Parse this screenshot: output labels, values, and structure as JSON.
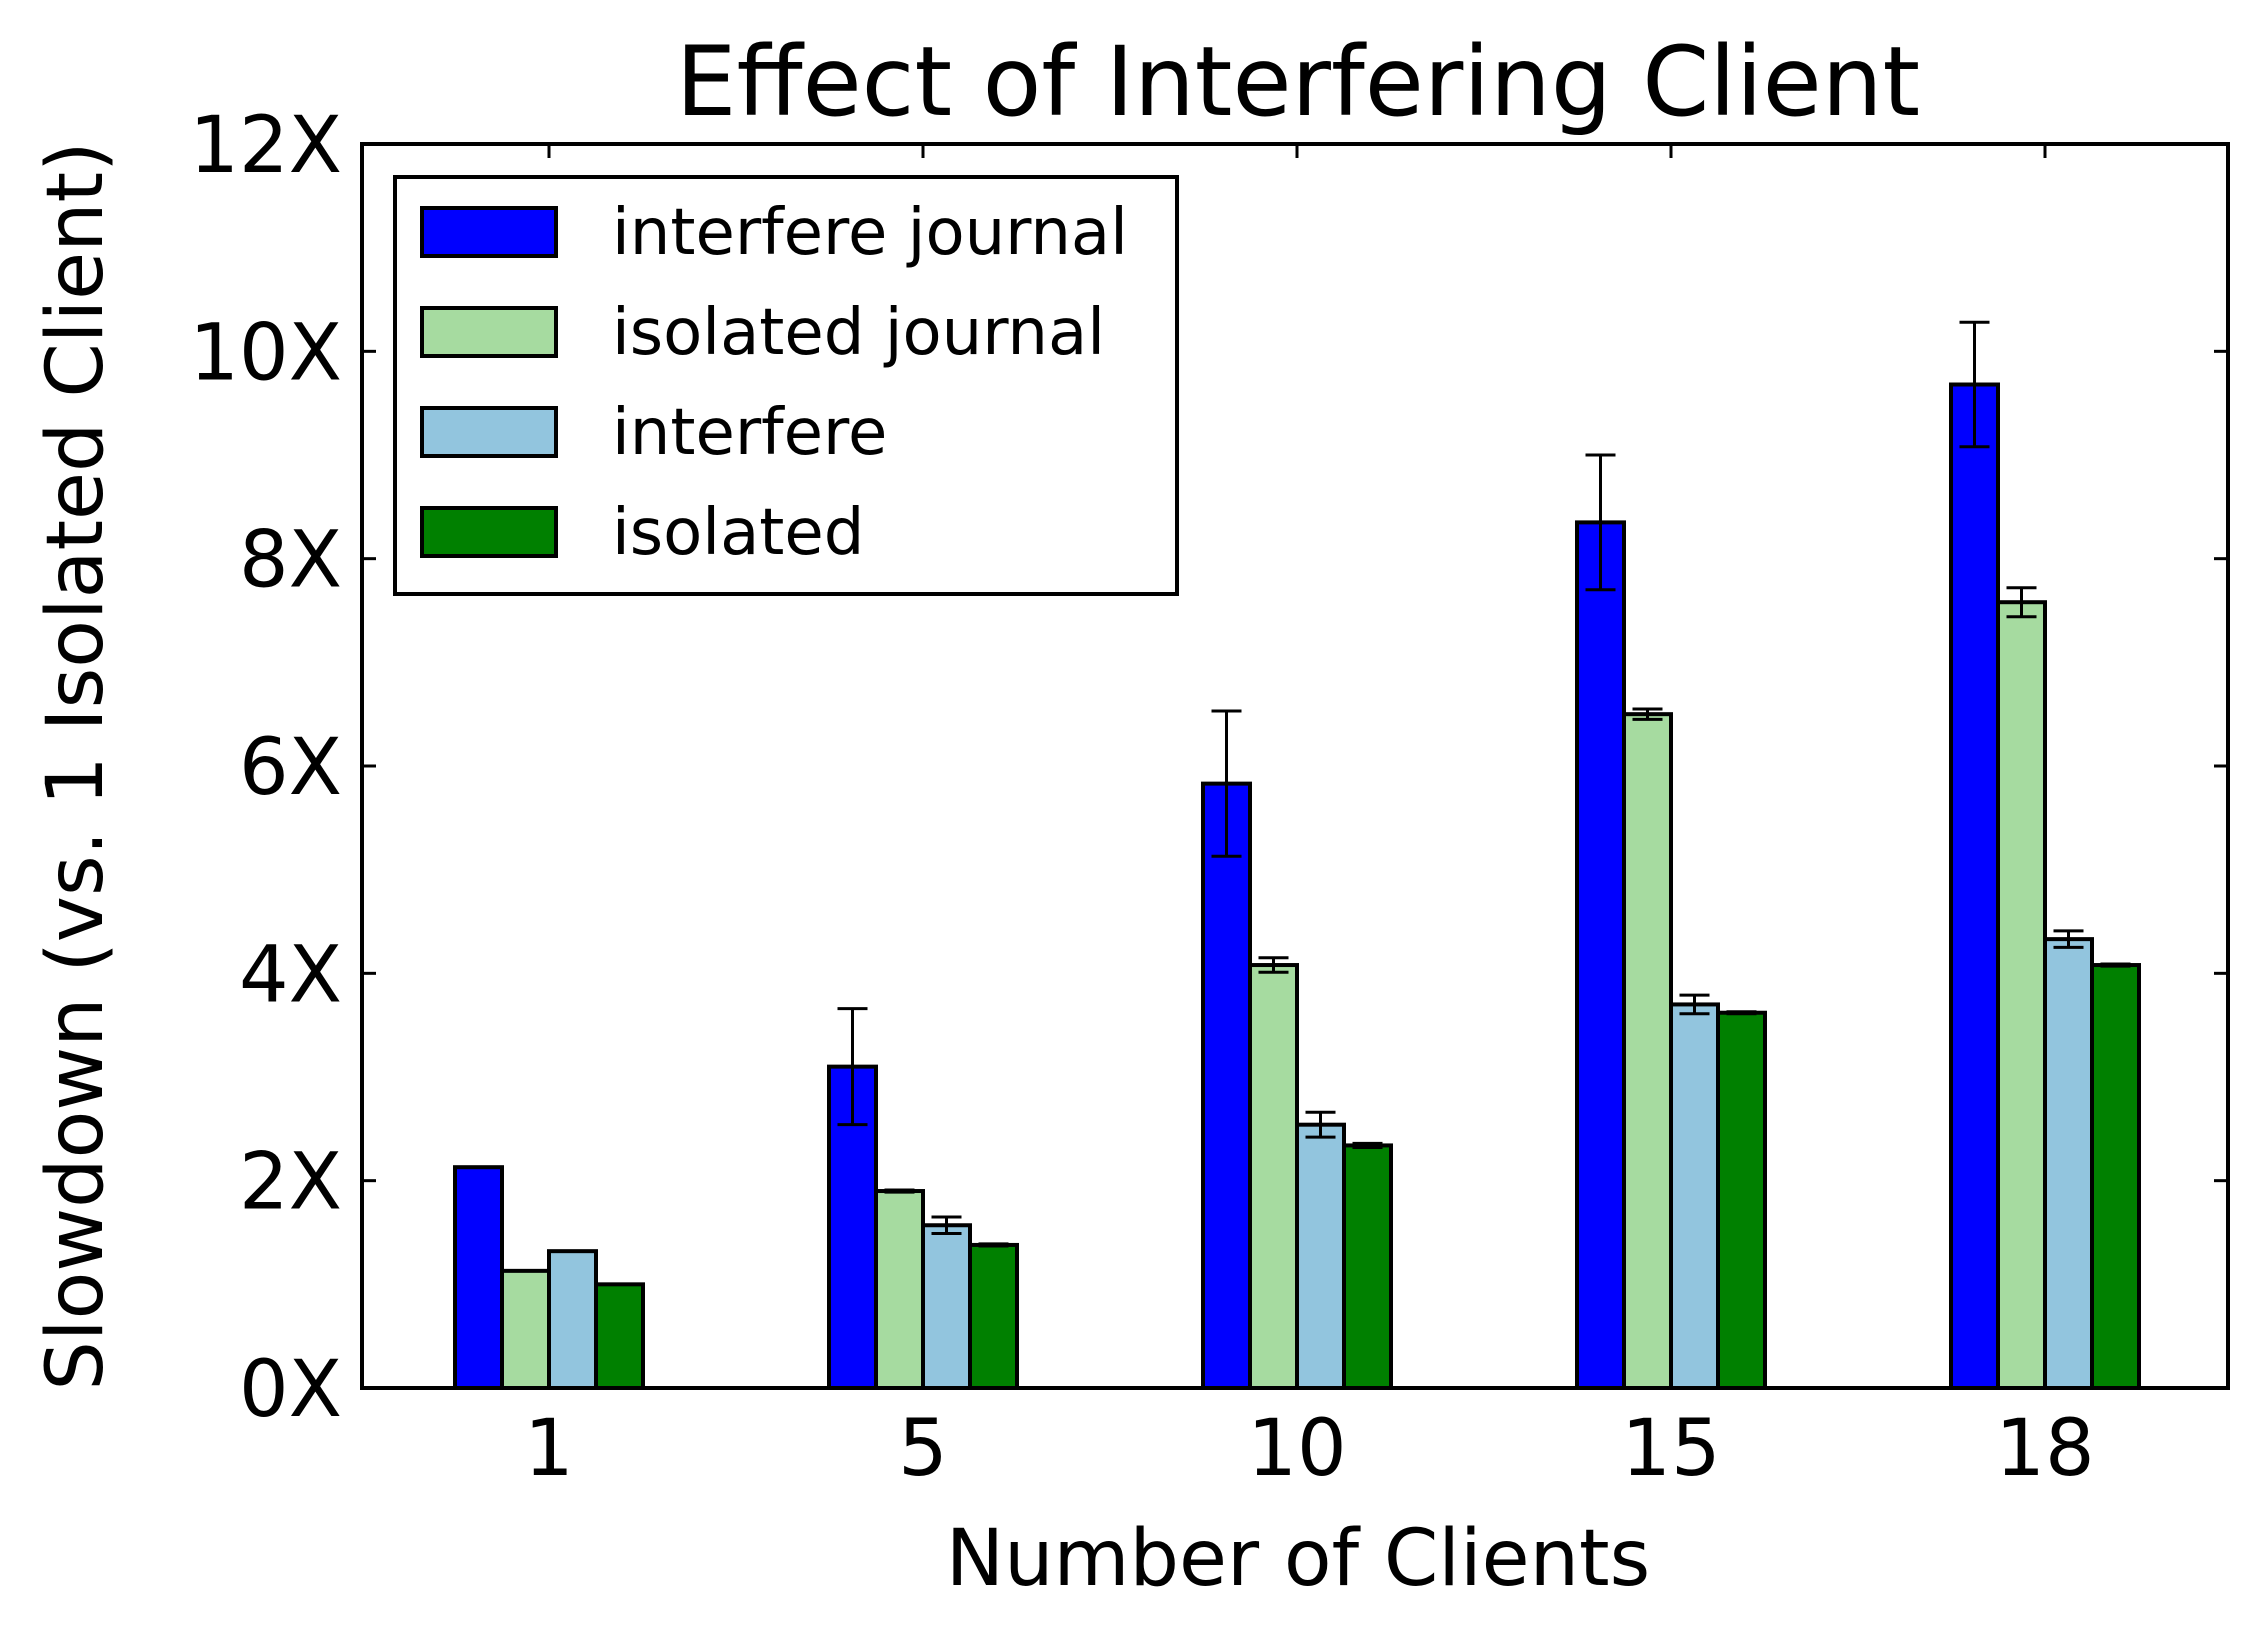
{
  "chart_data": {
    "type": "bar",
    "title": "Effect of Interfering Client",
    "xlabel": "Number of Clients",
    "ylabel": "Slowdown (vs. 1 Isolated Client)",
    "categories": [
      "1",
      "5",
      "10",
      "15",
      "18"
    ],
    "ylim": [
      0,
      12
    ],
    "yticks": [
      0,
      2,
      4,
      6,
      8,
      10,
      12
    ],
    "ytick_labels": [
      "0X",
      "2X",
      "4X",
      "6X",
      "8X",
      "10X",
      "12X"
    ],
    "grid": false,
    "legend_position": "top-left",
    "series": [
      {
        "name": "interfere journal",
        "color": "#0000ff",
        "values": [
          2.13,
          3.1,
          5.83,
          8.35,
          9.68
        ],
        "errors": [
          0.0,
          0.56,
          0.7,
          0.65,
          0.6
        ]
      },
      {
        "name": "isolated journal",
        "color": "#a6dba0",
        "values": [
          1.13,
          1.9,
          4.08,
          6.5,
          7.58
        ],
        "errors": [
          0.0,
          0.01,
          0.07,
          0.05,
          0.14
        ]
      },
      {
        "name": "interfere",
        "color": "#92c5de",
        "values": [
          1.32,
          1.57,
          2.54,
          3.7,
          4.33
        ],
        "errors": [
          0.0,
          0.08,
          0.12,
          0.09,
          0.08
        ]
      },
      {
        "name": "isolated",
        "color": "#008000",
        "values": [
          1.0,
          1.38,
          2.34,
          3.62,
          4.08
        ],
        "errors": [
          0.0,
          0.01,
          0.02,
          0.01,
          0.01
        ]
      }
    ]
  }
}
